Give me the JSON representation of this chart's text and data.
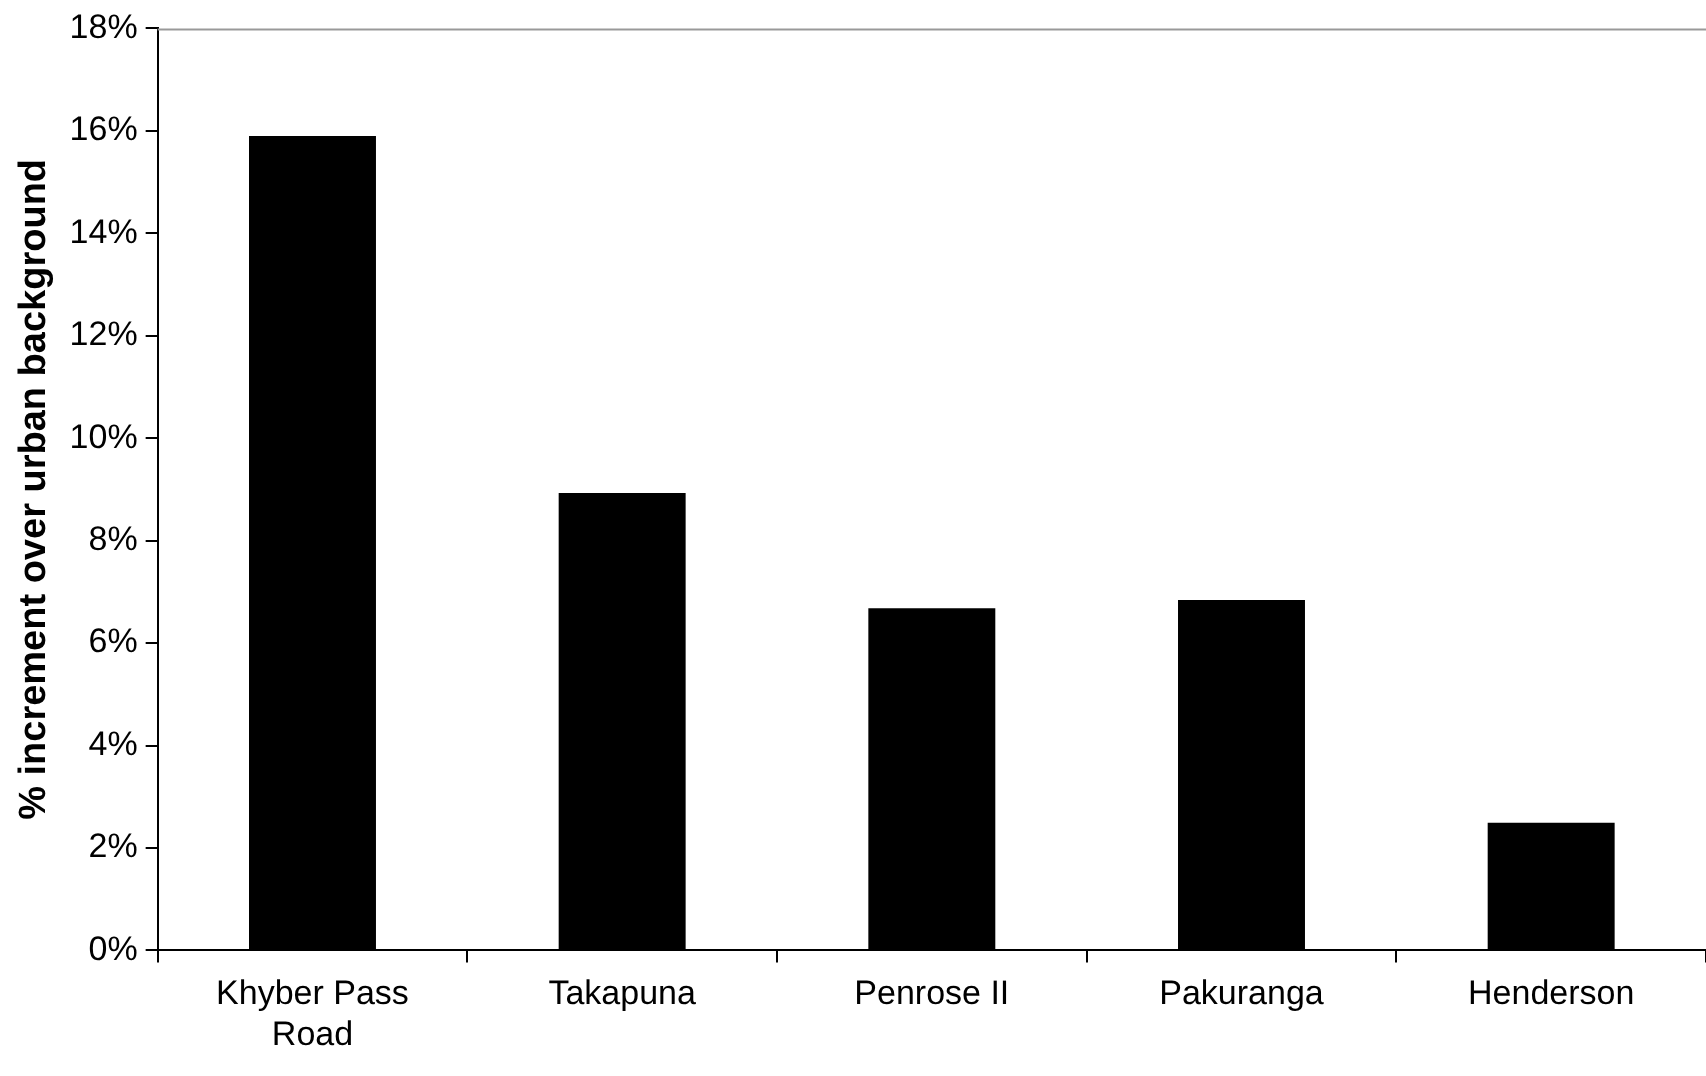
{
  "chart_data": {
    "type": "bar",
    "ylabel": "% increment over urban background",
    "categories": [
      "Khyber Pass Road",
      "Takapuna",
      "Penrose II",
      "Pakuranga",
      "Henderson"
    ],
    "values": [
      15.9,
      8.93,
      6.68,
      6.84,
      2.49
    ],
    "color": "#000000",
    "ylim": [
      0,
      18
    ],
    "yticks": [
      {
        "value": 0,
        "label": "0%"
      },
      {
        "value": 2,
        "label": "2%"
      },
      {
        "value": 4,
        "label": "4%"
      },
      {
        "value": 6,
        "label": "6%"
      },
      {
        "value": 8,
        "label": "8%"
      },
      {
        "value": 10,
        "label": "10%"
      },
      {
        "value": 12,
        "label": "12%"
      },
      {
        "value": 14,
        "label": "14%"
      },
      {
        "value": 16,
        "label": "16%"
      },
      {
        "value": 18,
        "label": "18%"
      }
    ],
    "grid": false,
    "legend": false
  }
}
